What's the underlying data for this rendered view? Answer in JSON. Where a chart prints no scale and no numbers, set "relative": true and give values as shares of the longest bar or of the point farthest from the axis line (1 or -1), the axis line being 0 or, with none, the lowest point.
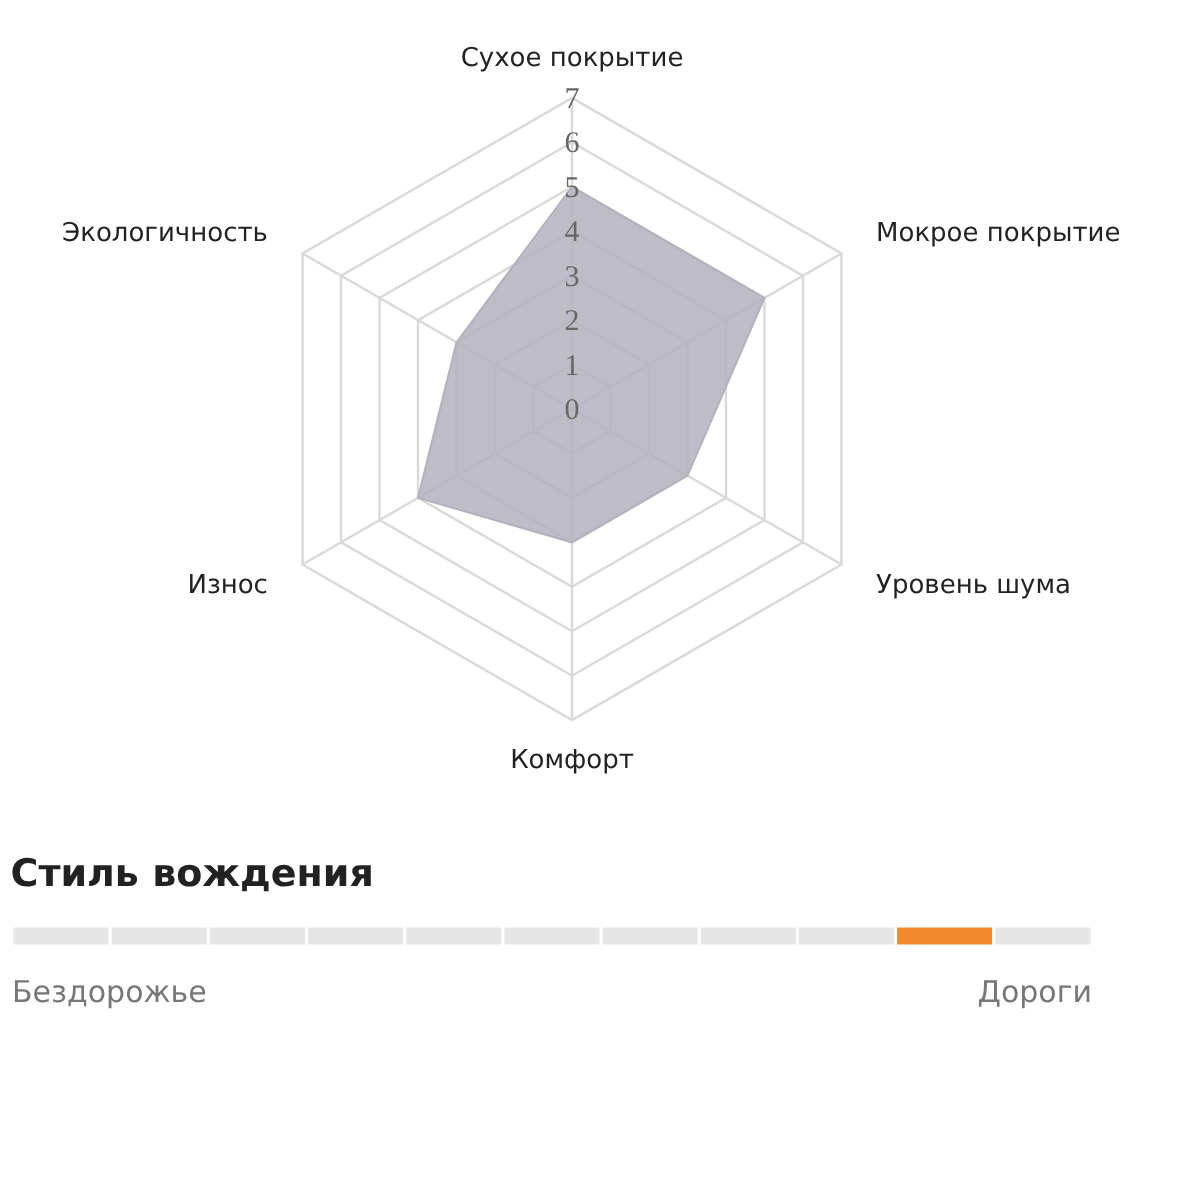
{
  "chart_data": [
    {
      "type": "radar",
      "categories": [
        "Сухое покрытие",
        "Мокрое покрытие",
        "Уровень шума",
        "Комфорт",
        "Износ",
        "Экологичность"
      ],
      "series": [
        {
          "color": "#b3b1bd",
          "values": [
            5,
            5,
            3,
            3,
            4,
            3
          ]
        }
      ],
      "ylim": [
        0,
        7
      ],
      "yticks": [
        0,
        1,
        2,
        3,
        4,
        5,
        6,
        7
      ],
      "grid": true
    },
    {
      "type": "bar",
      "relative": true,
      "title": "Стиль вождения",
      "categories": [
        null,
        null,
        null,
        null,
        null,
        null,
        null,
        null,
        null,
        null,
        null
      ],
      "values": [
        1,
        1,
        1,
        1,
        1,
        1,
        1,
        1,
        1,
        1,
        1
      ],
      "colors": [
        "#e6e6e6",
        "#e6e6e6",
        "#e6e6e6",
        "#e6e6e6",
        "#e6e6e6",
        "#e6e6e6",
        "#e6e6e6",
        "#e6e6e6",
        "#e6e6e6",
        "#f08a2c",
        "#e6e6e6"
      ],
      "annotations": [
        "Бездорожье",
        "Дороги"
      ]
    }
  ]
}
